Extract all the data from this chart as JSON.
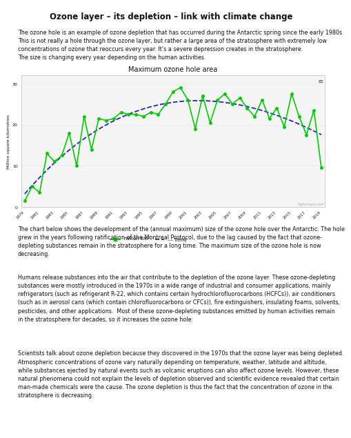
{
  "title": "Ozone layer – its depletion – link with climate change",
  "chart_title": "Maximum ozone hole area",
  "paragraph1": "The ozone hole is an example of ozone depletion that has occurred during the Antarctic spring since the early 1980s.\nThis is not really a hole through the ozone layer, but rather a large area of the stratosphere with extremely low\nconcentrations of ozone that reoccurs every year. It’s a severe depression creates in the stratosphere.\nThe size is changing every year depending on the human activities.",
  "paragraph2": "The chart below shows the development of the (annual maximum) size of the ozone hole over the Antarctic. The hole\ngrew in the years following ratification of the Montreal Protocol, due to the lag caused by the fact that ozone-\ndepleting substances remain in the stratosphere for a long time. The maximum size of the ozone hole is now\ndecreasing.",
  "paragraph3": "Humans release substances into the air that contribute to the depletion of the ozone layer. These ozone-depleting\nsubstances were mostly introduced in the 1970s in a wide range of industrial and consumer applications, mainly\nrefrigerators (such as refrigerant R-22, which contains certain hydrochlorofluorocarbons (HCFCs)), air conditioners\n(such as in aerosol cans (which contain chlorofluorocarbons or CFCs)), fire extinguishers, insulating foams, solvents,\npesticides, and other applications.  Most of these ozone-depleting substances emitted by human activities remain\nin the stratosphere for decades, so it increases the ozone hole.",
  "paragraph4": "Scientists talk about ozone depletion because they discovered in the 1970s that the ozone layer was being depleted.\nAtmospheric concentrations of ozone vary naturally depending on temperature, weather, latitude and altitude,\nwhile substances ejected by natural events such as volcanic eruptions can also affect ozone levels. However, these\nnatural phenomena could not explain the levels of depletion observed and scientific evidence revealed that certain\nman-made chemicals were the cause. The ozone depletion is thus the fact that the concentration of ozone in the\nstratosphere is decreasing.",
  "years": [
    1979,
    1980,
    1981,
    1982,
    1983,
    1984,
    1985,
    1986,
    1987,
    1988,
    1989,
    1990,
    1991,
    1992,
    1993,
    1994,
    1995,
    1996,
    1997,
    1998,
    1999,
    2000,
    2001,
    2002,
    2003,
    2004,
    2005,
    2006,
    2007,
    2008,
    2009,
    2010,
    2011,
    2012,
    2013,
    2014,
    2015,
    2016,
    2017,
    2018,
    2019
  ],
  "values": [
    1.5,
    5.0,
    3.5,
    13.0,
    11.0,
    12.5,
    18.0,
    10.0,
    22.0,
    14.0,
    21.5,
    21.0,
    21.5,
    23.0,
    22.5,
    22.5,
    22.0,
    23.0,
    22.5,
    25.0,
    28.0,
    29.0,
    26.0,
    19.0,
    27.0,
    20.5,
    26.0,
    27.5,
    25.0,
    26.5,
    24.0,
    22.0,
    26.0,
    21.5,
    24.0,
    19.5,
    27.5,
    22.0,
    17.5,
    23.5,
    9.5
  ],
  "ylabel": "Million square kilometres",
  "background_color": "#ffffff",
  "chart_bg": "#f5f5f5",
  "line_color": "#00cc00",
  "trend_color": "#2222cc",
  "grid_color": "#e8e8e8",
  "text_color": "#111111",
  "watermark": "Highcharts.com",
  "title_fontsize": 8.5,
  "para_fontsize": 5.8,
  "chart_title_fontsize": 7.0
}
